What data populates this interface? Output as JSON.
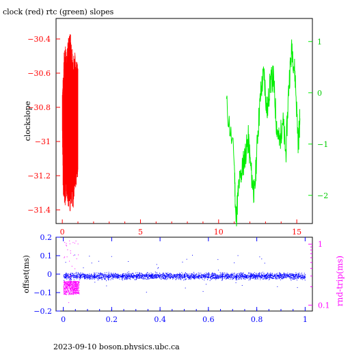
{
  "page_title": "clock (red) rtc (green) slopes",
  "footer": "2023-09-10  boson.physics.ubc.ca",
  "colors": {
    "red": "#ff0000",
    "green": "#00ee00",
    "blue": "#0000ff",
    "magenta": "#ff00ff",
    "black": "#000000"
  },
  "chart_data": [
    {
      "type": "line",
      "title": "clock (red) rtc (green) slopes",
      "ylabel": "clockslope",
      "xlim": [
        -0.4,
        16.0
      ],
      "ylim": [
        -31.48,
        -30.28
      ],
      "y2lim": [
        -2.55,
        1.45
      ],
      "x_ticks": [
        0,
        5,
        10,
        15
      ],
      "y_ticks": [
        -30.4,
        -30.6,
        -30.8,
        -31,
        -31.2,
        -31.4
      ],
      "y2_ticks": [
        1,
        0,
        -1,
        -2
      ],
      "series": [
        {
          "name": "clock (red)",
          "color": "red",
          "axis": "left",
          "x": [
            0.0,
            1.0
          ],
          "envelope": [
            [
              0.0,
              -30.95,
              -30.7
            ],
            [
              0.05,
              -31.3,
              -30.62
            ],
            [
              0.1,
              -31.35,
              -30.48
            ],
            [
              0.2,
              -31.38,
              -30.42
            ],
            [
              0.3,
              -31.32,
              -30.45
            ],
            [
              0.4,
              -31.4,
              -30.38
            ],
            [
              0.5,
              -31.42,
              -30.34
            ],
            [
              0.6,
              -31.36,
              -30.43
            ],
            [
              0.7,
              -31.4,
              -30.48
            ],
            [
              0.8,
              -31.3,
              -30.47
            ],
            [
              0.9,
              -31.25,
              -30.52
            ],
            [
              1.0,
              -31.2,
              -30.55
            ]
          ]
        },
        {
          "name": "rtc (green)",
          "color": "green",
          "axis": "right",
          "x": [
            10.5,
            11.0,
            11.1,
            11.3,
            11.5,
            11.7,
            11.9,
            12.1,
            12.3,
            12.5,
            12.7,
            12.9,
            13.1,
            13.3,
            13.5,
            13.7,
            13.9,
            14.1,
            14.3,
            14.5,
            14.7,
            14.9,
            15.1,
            15.2
          ],
          "y": [
            -0.2,
            -1.3,
            -2.5,
            -1.8,
            -1.5,
            -1.2,
            -0.9,
            -1.6,
            -2.0,
            -0.8,
            0.0,
            0.4,
            -0.4,
            0.2,
            0.3,
            -0.6,
            -1.0,
            -0.5,
            -1.2,
            0.2,
            0.9,
            0.3,
            -1.0,
            -0.5
          ]
        }
      ]
    },
    {
      "type": "scatter",
      "ylabel": "offset(ms)",
      "y2label": "rnd-trip(ms)",
      "xlim": [
        -0.03,
        1.03
      ],
      "ylim": [
        -0.2,
        0.2
      ],
      "y2lim": [
        0.08,
        1.3
      ],
      "y2_scale": "log",
      "x_ticks": [
        0,
        0.2,
        0.4,
        0.6,
        0.8,
        1
      ],
      "y_ticks": [
        0.2,
        0.1,
        0,
        -0.1,
        -0.2
      ],
      "y2_ticks": [
        1,
        0.1
      ],
      "series": [
        {
          "name": "offset",
          "color": "blue",
          "axis": "left",
          "x": [
            0,
            1
          ],
          "y_center": -0.01,
          "y_spread": 0.025
        },
        {
          "name": "rnd-trip",
          "color": "magenta",
          "axis": "right",
          "x": [
            0,
            0.065
          ],
          "y_center": 0.2,
          "y_spread": 0.05
        }
      ]
    }
  ]
}
